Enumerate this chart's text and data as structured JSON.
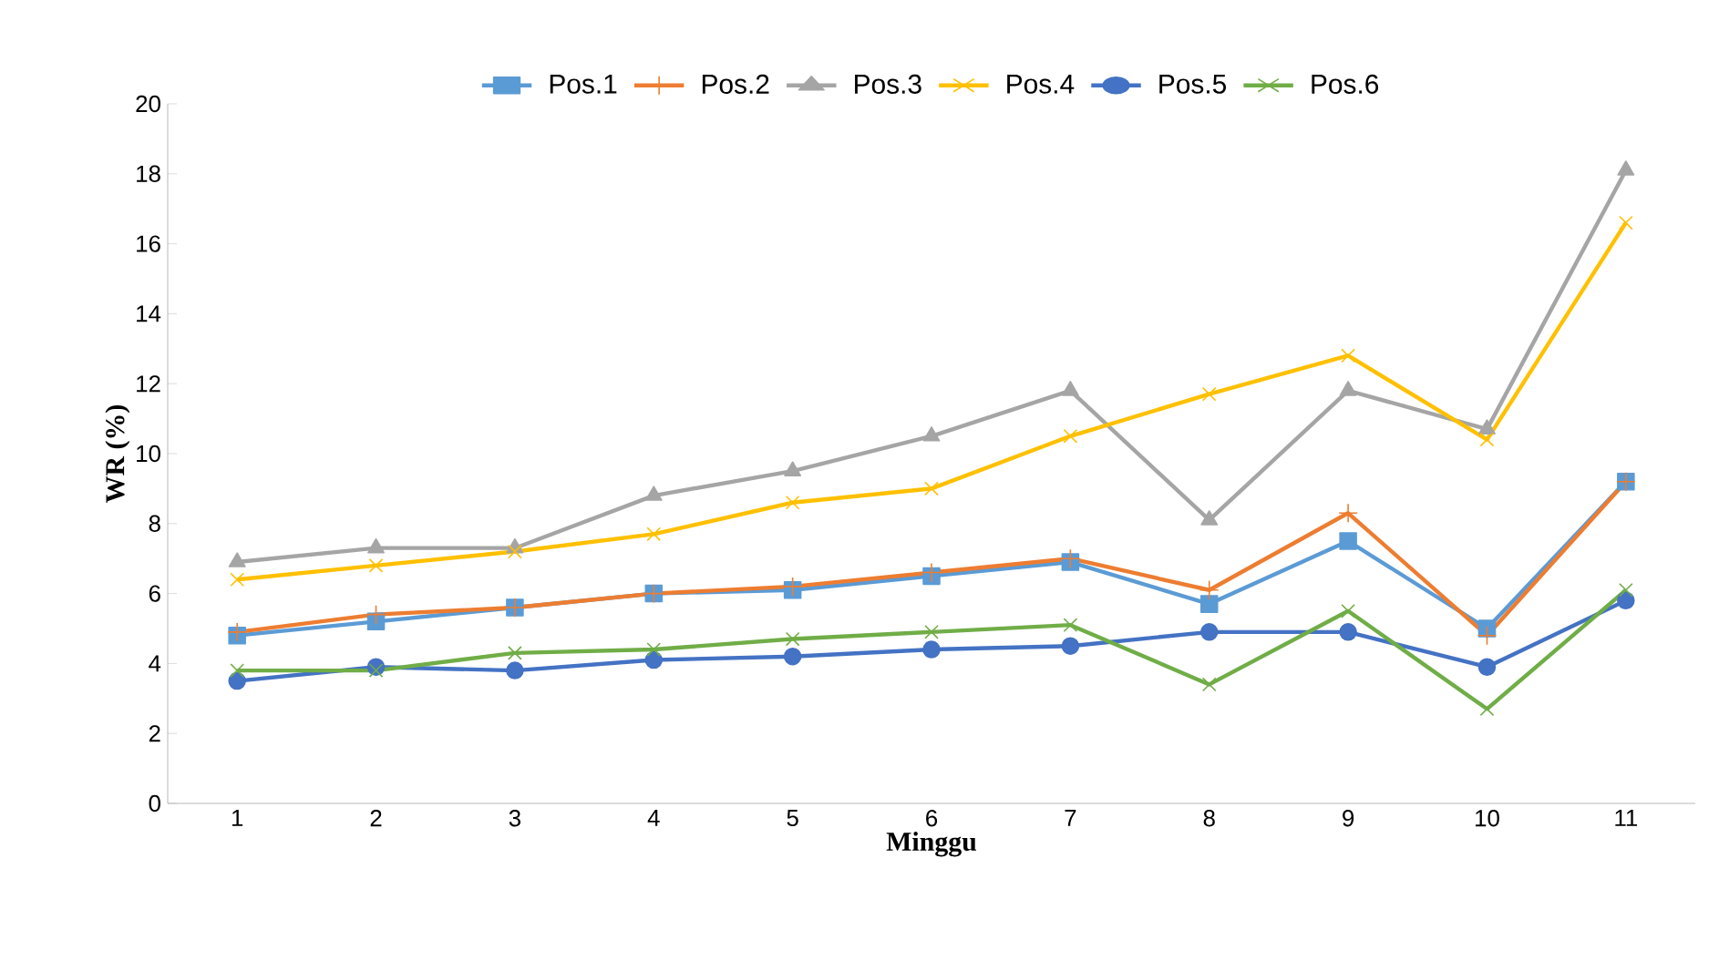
{
  "chart_data": {
    "type": "line",
    "xlabel": "Minggu",
    "ylabel": "WR (%)",
    "categories": [
      "1",
      "2",
      "3",
      "4",
      "5",
      "6",
      "7",
      "8",
      "9",
      "10",
      "11"
    ],
    "ylim": [
      0,
      20
    ],
    "yticks": [
      0,
      2,
      4,
      6,
      8,
      10,
      12,
      14,
      16,
      18,
      20
    ],
    "grid": false,
    "legend": "top",
    "line_style": "solid",
    "series": [
      {
        "name": "Pos.1",
        "color": "#5b9bd5",
        "marker": "square",
        "values": [
          4.8,
          5.2,
          5.6,
          6.0,
          6.1,
          6.5,
          6.9,
          5.7,
          7.5,
          5.0,
          9.2
        ]
      },
      {
        "name": "Pos.2",
        "color": "#ed7d31",
        "marker": "plus",
        "values": [
          4.9,
          5.4,
          5.6,
          6.0,
          6.2,
          6.6,
          7.0,
          6.1,
          8.3,
          4.8,
          9.2
        ]
      },
      {
        "name": "Pos.3",
        "color": "#a5a5a5",
        "marker": "triangle",
        "values": [
          6.9,
          7.3,
          7.3,
          8.8,
          9.5,
          10.5,
          11.8,
          8.1,
          11.8,
          10.7,
          18.1
        ]
      },
      {
        "name": "Pos.4",
        "color": "#ffc000",
        "marker": "cross",
        "values": [
          6.4,
          6.8,
          7.2,
          7.7,
          8.6,
          9.0,
          10.5,
          11.7,
          12.8,
          10.4,
          16.6
        ]
      },
      {
        "name": "Pos.5",
        "color": "#4472c4",
        "marker": "circle",
        "values": [
          3.5,
          3.9,
          3.8,
          4.1,
          4.2,
          4.4,
          4.5,
          4.9,
          4.9,
          3.9,
          5.8
        ]
      },
      {
        "name": "Pos.6",
        "color": "#70ad47",
        "marker": "cross",
        "values": [
          3.8,
          3.8,
          4.3,
          4.4,
          4.7,
          4.9,
          5.1,
          3.4,
          5.5,
          2.7,
          6.1
        ]
      }
    ]
  }
}
